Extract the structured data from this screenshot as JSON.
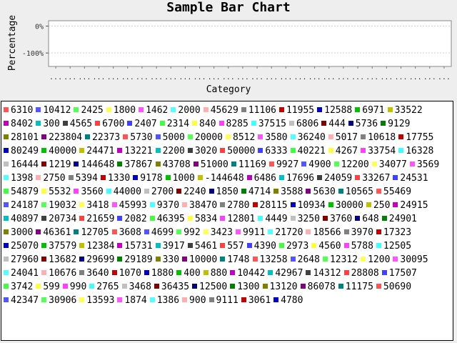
{
  "chart_data": {
    "type": "bar",
    "title": "Sample Bar Chart",
    "xlabel": "Category",
    "ylabel": "Percentage",
    "y_ticks": [
      "0%",
      "-100%"
    ],
    "ylim": [
      -150,
      20
    ],
    "categories": [
      "...",
      "...",
      "...",
      "...",
      "...",
      "...",
      "...",
      "...",
      "...",
      "...",
      "...",
      "...",
      "...",
      "...",
      "...",
      "...",
      "...",
      "...",
      "...",
      "...",
      "...",
      "...",
      "...",
      "...",
      "...",
      "...",
      "...",
      "..."
    ],
    "legend_position": "bottom",
    "series": [
      {
        "name": "6310"
      },
      {
        "name": "10412"
      },
      {
        "name": "2425"
      },
      {
        "name": "1800"
      },
      {
        "name": "1462"
      },
      {
        "name": "2000"
      },
      {
        "name": "45629"
      },
      {
        "name": "11106"
      },
      {
        "name": "11955"
      },
      {
        "name": "12588"
      },
      {
        "name": "6971"
      },
      {
        "name": "33522"
      },
      {
        "name": "8402"
      },
      {
        "name": "300"
      },
      {
        "name": "4565"
      },
      {
        "name": "6700"
      },
      {
        "name": "2407"
      },
      {
        "name": "2314"
      },
      {
        "name": "840"
      },
      {
        "name": "8285"
      },
      {
        "name": "37515"
      },
      {
        "name": "6806"
      },
      {
        "name": "444"
      },
      {
        "name": "5736"
      },
      {
        "name": "9129"
      },
      {
        "name": "28101"
      },
      {
        "name": "223804"
      },
      {
        "name": "22373"
      },
      {
        "name": "5730"
      },
      {
        "name": "5000"
      },
      {
        "name": "20000"
      },
      {
        "name": "8512"
      },
      {
        "name": "3580"
      },
      {
        "name": "36240"
      },
      {
        "name": "5017"
      },
      {
        "name": "10618"
      },
      {
        "name": "17755"
      },
      {
        "name": "80249"
      },
      {
        "name": "40000"
      },
      {
        "name": "24471"
      },
      {
        "name": "13221"
      },
      {
        "name": "2200"
      },
      {
        "name": "3020"
      },
      {
        "name": "50000"
      },
      {
        "name": "6333"
      },
      {
        "name": "40221"
      },
      {
        "name": "4267"
      },
      {
        "name": "33754"
      },
      {
        "name": "16328"
      },
      {
        "name": "16444"
      },
      {
        "name": "1219"
      },
      {
        "name": "144648"
      },
      {
        "name": "37867"
      },
      {
        "name": "43708"
      },
      {
        "name": "51000"
      },
      {
        "name": "11169"
      },
      {
        "name": "9927"
      },
      {
        "name": "4900"
      },
      {
        "name": "12200"
      },
      {
        "name": "34077"
      },
      {
        "name": "3569"
      },
      {
        "name": "1398"
      },
      {
        "name": "2750"
      },
      {
        "name": "5394"
      },
      {
        "name": "1330"
      },
      {
        "name": "9178"
      },
      {
        "name": "1000"
      },
      {
        "name": "-144648"
      },
      {
        "name": "6486"
      },
      {
        "name": "17696"
      },
      {
        "name": "24059"
      },
      {
        "name": "33267"
      },
      {
        "name": "24531"
      },
      {
        "name": "54879"
      },
      {
        "name": "5532"
      },
      {
        "name": "3560"
      },
      {
        "name": "44000"
      },
      {
        "name": "2700"
      },
      {
        "name": "2240"
      },
      {
        "name": "1850"
      },
      {
        "name": "4714"
      },
      {
        "name": "3588"
      },
      {
        "name": "5630"
      },
      {
        "name": "10565"
      },
      {
        "name": "55469"
      },
      {
        "name": "24187"
      },
      {
        "name": "19032"
      },
      {
        "name": "3418"
      },
      {
        "name": "45993"
      },
      {
        "name": "9370"
      },
      {
        "name": "38470"
      },
      {
        "name": "2780"
      },
      {
        "name": "28115"
      },
      {
        "name": "10934"
      },
      {
        "name": "30000"
      },
      {
        "name": "250"
      },
      {
        "name": "24915"
      },
      {
        "name": "40897"
      },
      {
        "name": "20734"
      },
      {
        "name": "21659"
      },
      {
        "name": "2082"
      },
      {
        "name": "46395"
      },
      {
        "name": "5834"
      },
      {
        "name": "12801"
      },
      {
        "name": "4449"
      },
      {
        "name": "3250"
      },
      {
        "name": "3760"
      },
      {
        "name": "648"
      },
      {
        "name": "24901"
      },
      {
        "name": "3000"
      },
      {
        "name": "46361"
      },
      {
        "name": "12705"
      },
      {
        "name": "3608"
      },
      {
        "name": "4699"
      },
      {
        "name": "992"
      },
      {
        "name": "3423"
      },
      {
        "name": "9911"
      },
      {
        "name": "21720"
      },
      {
        "name": "18566"
      },
      {
        "name": "3970"
      },
      {
        "name": "17323"
      },
      {
        "name": "25070"
      },
      {
        "name": "37579"
      },
      {
        "name": "12384"
      },
      {
        "name": "15731"
      },
      {
        "name": "3917"
      },
      {
        "name": "5461"
      },
      {
        "name": "557"
      },
      {
        "name": "4390"
      },
      {
        "name": "2973"
      },
      {
        "name": "4560"
      },
      {
        "name": "5788"
      },
      {
        "name": "12505"
      },
      {
        "name": "27960"
      },
      {
        "name": "13682"
      },
      {
        "name": "29699"
      },
      {
        "name": "29189"
      },
      {
        "name": "330"
      },
      {
        "name": "10000"
      },
      {
        "name": "1748"
      },
      {
        "name": "13258"
      },
      {
        "name": "2648"
      },
      {
        "name": "12312"
      },
      {
        "name": "1200"
      },
      {
        "name": "30095"
      },
      {
        "name": "24041"
      },
      {
        "name": "10676"
      },
      {
        "name": "3640"
      },
      {
        "name": "1070"
      },
      {
        "name": "1880"
      },
      {
        "name": "400"
      },
      {
        "name": "880"
      },
      {
        "name": "10442"
      },
      {
        "name": "42967"
      },
      {
        "name": "14312"
      },
      {
        "name": "28808"
      },
      {
        "name": "17507"
      },
      {
        "name": "3742"
      },
      {
        "name": "599"
      },
      {
        "name": "990"
      },
      {
        "name": "2765"
      },
      {
        "name": "3468"
      },
      {
        "name": "36435"
      },
      {
        "name": "12500"
      },
      {
        "name": "1300"
      },
      {
        "name": "13120"
      },
      {
        "name": "86078"
      },
      {
        "name": "11175"
      },
      {
        "name": "50690"
      },
      {
        "name": "42347"
      },
      {
        "name": "30906"
      },
      {
        "name": "13593"
      },
      {
        "name": "1874"
      },
      {
        "name": "1386"
      },
      {
        "name": "900"
      },
      {
        "name": "9111"
      },
      {
        "name": "3061"
      },
      {
        "name": "4780"
      }
    ],
    "colors": [
      "#ff5555",
      "#5555ff",
      "#55ff55",
      "#ffff55",
      "#ff55ff",
      "#55ffff",
      "#ffafaf",
      "#808080",
      "#c00000",
      "#0000c0",
      "#00c000",
      "#c0c000",
      "#c000c0",
      "#00c0c0",
      "#404040",
      "#ff4040",
      "#4040ff",
      "#40ff40",
      "#ffff40",
      "#ff40ff",
      "#40ffff",
      "#c0c0c0",
      "#800000",
      "#000080",
      "#008000",
      "#808000",
      "#800080",
      "#008080"
    ]
  }
}
